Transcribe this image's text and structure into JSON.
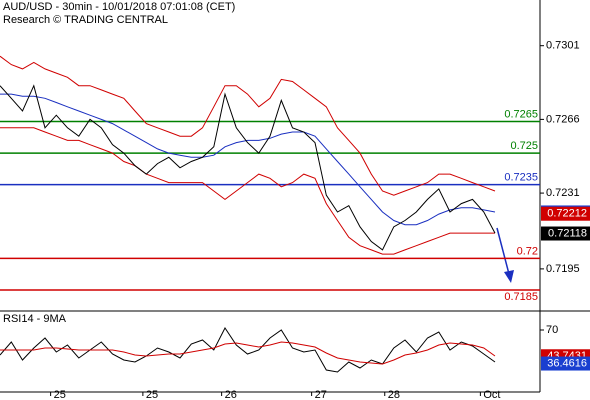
{
  "header": {
    "line1": "AUD/USD - 30min - 10/01/2018 07:01:08 (CET)",
    "line2": "Research © TRADING CENTRAL"
  },
  "chart_data": [
    {
      "type": "line",
      "x": [
        0,
        1,
        2,
        3,
        4,
        5,
        6,
        7,
        8,
        9,
        10,
        11,
        12,
        13,
        14,
        15,
        16,
        17,
        18,
        19,
        20,
        21,
        22,
        23,
        24,
        25,
        26,
        27,
        28,
        29,
        30,
        31,
        32,
        33,
        34,
        35,
        36,
        37,
        38,
        39,
        40,
        41,
        42,
        43,
        44
      ],
      "xlim": [
        0,
        48
      ],
      "xticks": [
        {
          "value": 4.5,
          "label": "25"
        },
        {
          "value": 12.7,
          "label": "25"
        },
        {
          "value": 19.7,
          "label": "26"
        },
        {
          "value": 27.7,
          "label": "27"
        },
        {
          "value": 34.2,
          "label": "28"
        },
        {
          "value": 42.7,
          "label": "Oct"
        }
      ],
      "ylim": [
        0.7175,
        0.73227
      ],
      "yticks": [
        0.7301,
        0.7266,
        0.7231,
        0.7195
      ],
      "series": [
        {
          "color": "#d00000",
          "values": [
            0.7296,
            0.7292,
            0.729,
            0.7293,
            0.729,
            0.7288,
            0.7286,
            0.7282,
            0.7282,
            0.728,
            0.7278,
            0.7276,
            0.727,
            0.7264,
            0.7262,
            0.726,
            0.7258,
            0.7258,
            0.7262,
            0.7272,
            0.7282,
            0.7282,
            0.7278,
            0.7272,
            0.7276,
            0.7285,
            0.7284,
            0.728,
            0.7276,
            0.7272,
            0.7262,
            0.7256,
            0.725,
            0.724,
            0.7232,
            0.723,
            0.7232,
            0.7234,
            0.7236,
            0.724,
            0.724,
            0.7238,
            0.7236,
            0.7234,
            0.7232
          ]
        },
        {
          "color": "#d00000",
          "values": [
            0.7262,
            0.7262,
            0.7262,
            0.7262,
            0.726,
            0.7258,
            0.7256,
            0.7256,
            0.7254,
            0.7252,
            0.725,
            0.7246,
            0.7244,
            0.724,
            0.7238,
            0.7236,
            0.7236,
            0.7236,
            0.7236,
            0.7232,
            0.7228,
            0.7232,
            0.7236,
            0.724,
            0.7238,
            0.7234,
            0.7236,
            0.724,
            0.7238,
            0.7226,
            0.7218,
            0.721,
            0.7206,
            0.7204,
            0.7202,
            0.7202,
            0.7204,
            0.7206,
            0.7208,
            0.721,
            0.7212,
            0.7212,
            0.7212,
            0.7212,
            0.7212
          ]
        },
        {
          "color": "#1a2fc0",
          "values": [
            0.7278,
            0.7278,
            0.7277,
            0.7277,
            0.7276,
            0.7274,
            0.7272,
            0.727,
            0.7268,
            0.7266,
            0.7264,
            0.7261,
            0.7258,
            0.7255,
            0.7252,
            0.725,
            0.7249,
            0.7248,
            0.7248,
            0.7249,
            0.7253,
            0.7255,
            0.7256,
            0.7256,
            0.7257,
            0.7259,
            0.726,
            0.726,
            0.7258,
            0.7252,
            0.7246,
            0.724,
            0.7234,
            0.7228,
            0.7222,
            0.7218,
            0.7216,
            0.7216,
            0.7218,
            0.7221,
            0.7223,
            0.7224,
            0.7224,
            0.7223,
            0.7222
          ]
        },
        {
          "color": "#000000",
          "values": [
            0.7282,
            0.7276,
            0.727,
            0.7282,
            0.7262,
            0.7268,
            0.7262,
            0.7258,
            0.7266,
            0.7262,
            0.7254,
            0.725,
            0.7244,
            0.724,
            0.7245,
            0.7248,
            0.7243,
            0.7246,
            0.7248,
            0.7253,
            0.7278,
            0.7262,
            0.7255,
            0.725,
            0.7258,
            0.7275,
            0.7262,
            0.726,
            0.7255,
            0.723,
            0.7222,
            0.7225,
            0.7215,
            0.7208,
            0.7204,
            0.7215,
            0.7218,
            0.7222,
            0.7228,
            0.7233,
            0.7222,
            0.7226,
            0.7228,
            0.7222,
            0.7212
          ]
        }
      ],
      "levels": [
        {
          "value": 0.7265,
          "color": "#008000"
        },
        {
          "value": 0.725,
          "color": "#008000"
        },
        {
          "value": 0.7235,
          "color": "#1a2fc0"
        },
        {
          "value": 0.72,
          "color": "#d00000"
        },
        {
          "value": 0.7185,
          "color": "#d00000"
        }
      ],
      "price_tags": [
        {
          "value": 0.72218,
          "color": "#1a3fd0"
        },
        {
          "value": 0.72212,
          "color": "#d00000"
        },
        {
          "value": 0.72118,
          "color": "#000000"
        }
      ]
    },
    {
      "type": "line",
      "title": "RSI14 - 9MA",
      "x": [
        0,
        1,
        2,
        3,
        4,
        5,
        6,
        7,
        8,
        9,
        10,
        11,
        12,
        13,
        14,
        15,
        16,
        17,
        18,
        19,
        20,
        21,
        22,
        23,
        24,
        25,
        26,
        27,
        28,
        29,
        30,
        31,
        32,
        33,
        34,
        35,
        36,
        37,
        38,
        39,
        40,
        41,
        42,
        43,
        44
      ],
      "xlim": [
        0,
        48
      ],
      "ylim": [
        8,
        88
      ],
      "yticks": [
        70
      ],
      "series": [
        {
          "color": "#000000",
          "values": [
            45,
            58,
            40,
            52,
            62,
            48,
            55,
            42,
            50,
            58,
            46,
            40,
            38,
            44,
            52,
            48,
            42,
            56,
            60,
            50,
            72,
            55,
            46,
            50,
            62,
            70,
            52,
            48,
            50,
            30,
            28,
            38,
            32,
            40,
            36,
            52,
            60,
            48,
            62,
            68,
            50,
            58,
            54,
            46,
            38
          ]
        },
        {
          "color": "#d00000",
          "values": [
            50,
            50,
            50,
            50,
            52,
            52,
            51,
            50,
            50,
            50,
            50,
            48,
            45,
            44,
            45,
            46,
            46,
            48,
            50,
            52,
            56,
            57,
            55,
            53,
            55,
            58,
            57,
            55,
            53,
            47,
            42,
            40,
            38,
            37,
            36,
            40,
            45,
            47,
            50,
            55,
            57,
            56,
            55,
            52,
            44
          ]
        }
      ],
      "price_tags": [
        {
          "value": 43.7431,
          "color": "#d00000"
        },
        {
          "value": 36.4616,
          "color": "#1a3fd0"
        }
      ]
    }
  ]
}
